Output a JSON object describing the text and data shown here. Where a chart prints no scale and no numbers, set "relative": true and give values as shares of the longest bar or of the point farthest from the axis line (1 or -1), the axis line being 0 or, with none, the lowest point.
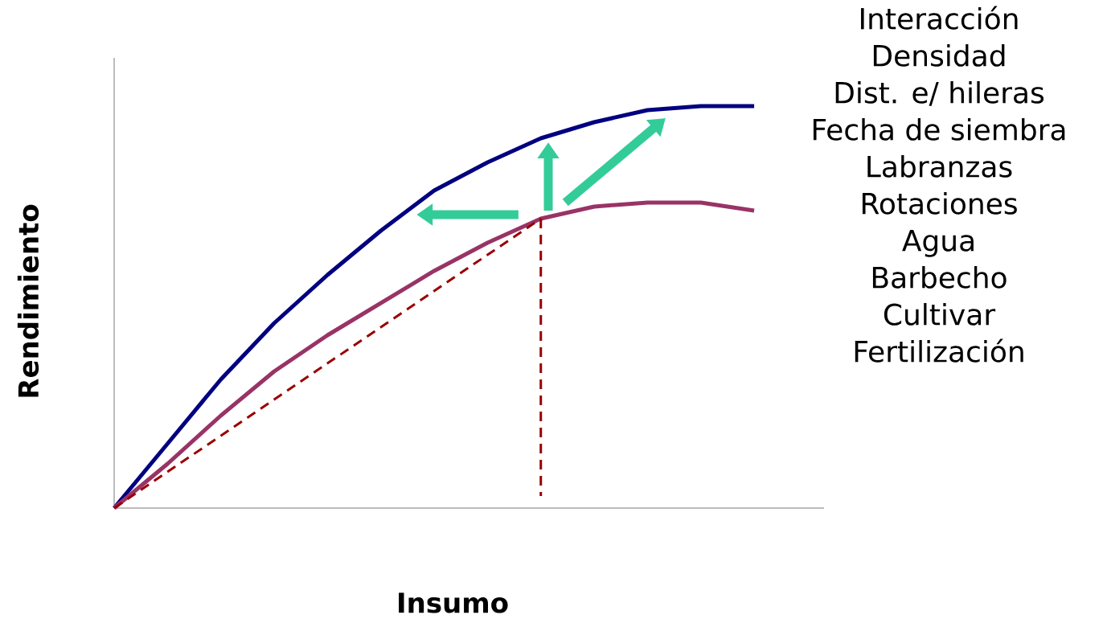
{
  "chart_data": {
    "type": "line",
    "relative": true,
    "xlabel": "Insumo",
    "ylabel": "Rendimiento",
    "categories": [
      null,
      null,
      null,
      null,
      null,
      null,
      null,
      null,
      null,
      null,
      null,
      null,
      null
    ],
    "series": [
      {
        "color": "#000080",
        "values": [
          0,
          0.16,
          0.32,
          0.46,
          0.58,
          0.69,
          0.79,
          0.86,
          0.92,
          0.96,
          0.99,
          1,
          1
        ]
      },
      {
        "color": "#993366",
        "values": [
          0,
          0.11,
          0.23,
          0.34,
          0.43,
          0.51,
          0.59,
          0.66,
          0.72,
          0.75,
          0.76,
          0.76,
          0.74
        ]
      },
      {
        "color": "#990000",
        "line_style": "dashed",
        "values": [
          0,
          0.09,
          0.18,
          0.27,
          0.36,
          0.45,
          0.54,
          0.63,
          0.72,
          null,
          null,
          null,
          null
        ]
      }
    ],
    "annotations": [
      "Interacción",
      "Densidad",
      "Dist. e/ hileras",
      "Fecha de siembra",
      "Labranzas",
      "Rotaciones",
      "Agua",
      "Barbecho",
      "Cultivar",
      "Fertilización"
    ]
  }
}
